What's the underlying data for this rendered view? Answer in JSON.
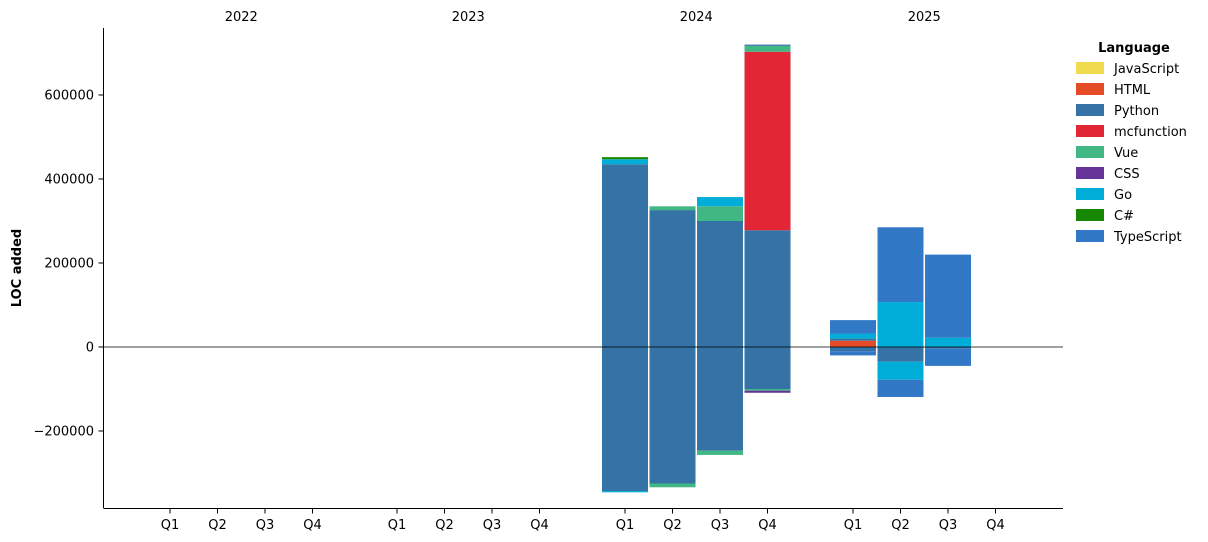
{
  "chart_data": {
    "type": "bar",
    "stacked": true,
    "diverging": true,
    "ylabel": "LOC added",
    "xlabel": "",
    "ylim": [
      -380000,
      760000
    ],
    "yticks": [
      -200000,
      0,
      200000,
      400000,
      600000
    ],
    "ytick_labels": [
      "−200000",
      "0",
      "200000",
      "400000",
      "600000"
    ],
    "years": [
      "2022",
      "2023",
      "2024",
      "2025"
    ],
    "quarters": [
      "Q1",
      "Q2",
      "Q3",
      "Q4"
    ],
    "legend": {
      "title": "Language",
      "placement": "top-right",
      "items": [
        {
          "name": "JavaScript",
          "color": "#f0db4f"
        },
        {
          "name": "HTML",
          "color": "#e34c26"
        },
        {
          "name": "Python",
          "color": "#3572a5"
        },
        {
          "name": "mcfunction",
          "color": "#e32636"
        },
        {
          "name": "Vue",
          "color": "#41b883"
        },
        {
          "name": "CSS",
          "color": "#663399"
        },
        {
          "name": "Go",
          "color": "#00add8"
        },
        {
          "name": "C#",
          "color": "#178600"
        },
        {
          "name": "TypeScript",
          "color": "#3178c6"
        }
      ]
    },
    "bars": [
      {
        "year": "2024",
        "quarter": "Q1",
        "positive": [
          {
            "lang": "Python",
            "value": 435000
          },
          {
            "lang": "Go",
            "value": 12000
          },
          {
            "lang": "C#",
            "value": 5000
          }
        ],
        "negative": [
          {
            "lang": "Python",
            "value": -343000
          },
          {
            "lang": "Go",
            "value": -3000
          }
        ]
      },
      {
        "year": "2024",
        "quarter": "Q2",
        "positive": [
          {
            "lang": "Python",
            "value": 326000
          },
          {
            "lang": "Vue",
            "value": 9000
          }
        ],
        "negative": [
          {
            "lang": "Python",
            "value": -325000
          },
          {
            "lang": "Vue",
            "value": -9000
          }
        ]
      },
      {
        "year": "2024",
        "quarter": "Q3",
        "positive": [
          {
            "lang": "Python",
            "value": 300000
          },
          {
            "lang": "Vue",
            "value": 35000
          },
          {
            "lang": "Go",
            "value": 22000
          }
        ],
        "negative": [
          {
            "lang": "Python",
            "value": -247000
          },
          {
            "lang": "Vue",
            "value": -10000
          }
        ]
      },
      {
        "year": "2024",
        "quarter": "Q4",
        "positive": [
          {
            "lang": "Python",
            "value": 278000
          },
          {
            "lang": "mcfunction",
            "value": 425000
          },
          {
            "lang": "Vue",
            "value": 14000
          },
          {
            "lang": "Python",
            "value": 3000
          }
        ],
        "negative": [
          {
            "lang": "Python",
            "value": -100000
          },
          {
            "lang": "Vue",
            "value": -4000
          },
          {
            "lang": "CSS",
            "value": -5000
          }
        ]
      },
      {
        "year": "2025",
        "quarter": "Q1",
        "positive": [
          {
            "lang": "HTML",
            "value": 15000
          },
          {
            "lang": "Python",
            "value": 5000
          },
          {
            "lang": "Go",
            "value": 12000
          },
          {
            "lang": "TypeScript",
            "value": 32000
          }
        ],
        "negative": [
          {
            "lang": "Python",
            "value": -10000
          },
          {
            "lang": "TypeScript",
            "value": -10000
          }
        ]
      },
      {
        "year": "2025",
        "quarter": "Q2",
        "positive": [
          {
            "lang": "Go",
            "value": 107000
          },
          {
            "lang": "TypeScript",
            "value": 178000
          }
        ],
        "negative": [
          {
            "lang": "Python",
            "value": -35000
          },
          {
            "lang": "Go",
            "value": -43000
          },
          {
            "lang": "TypeScript",
            "value": -41000
          }
        ]
      },
      {
        "year": "2025",
        "quarter": "Q3",
        "positive": [
          {
            "lang": "Go",
            "value": 22000
          },
          {
            "lang": "TypeScript",
            "value": 198000
          }
        ],
        "negative": [
          {
            "lang": "Python",
            "value": -3000
          },
          {
            "lang": "TypeScript",
            "value": -42000
          }
        ]
      }
    ]
  }
}
